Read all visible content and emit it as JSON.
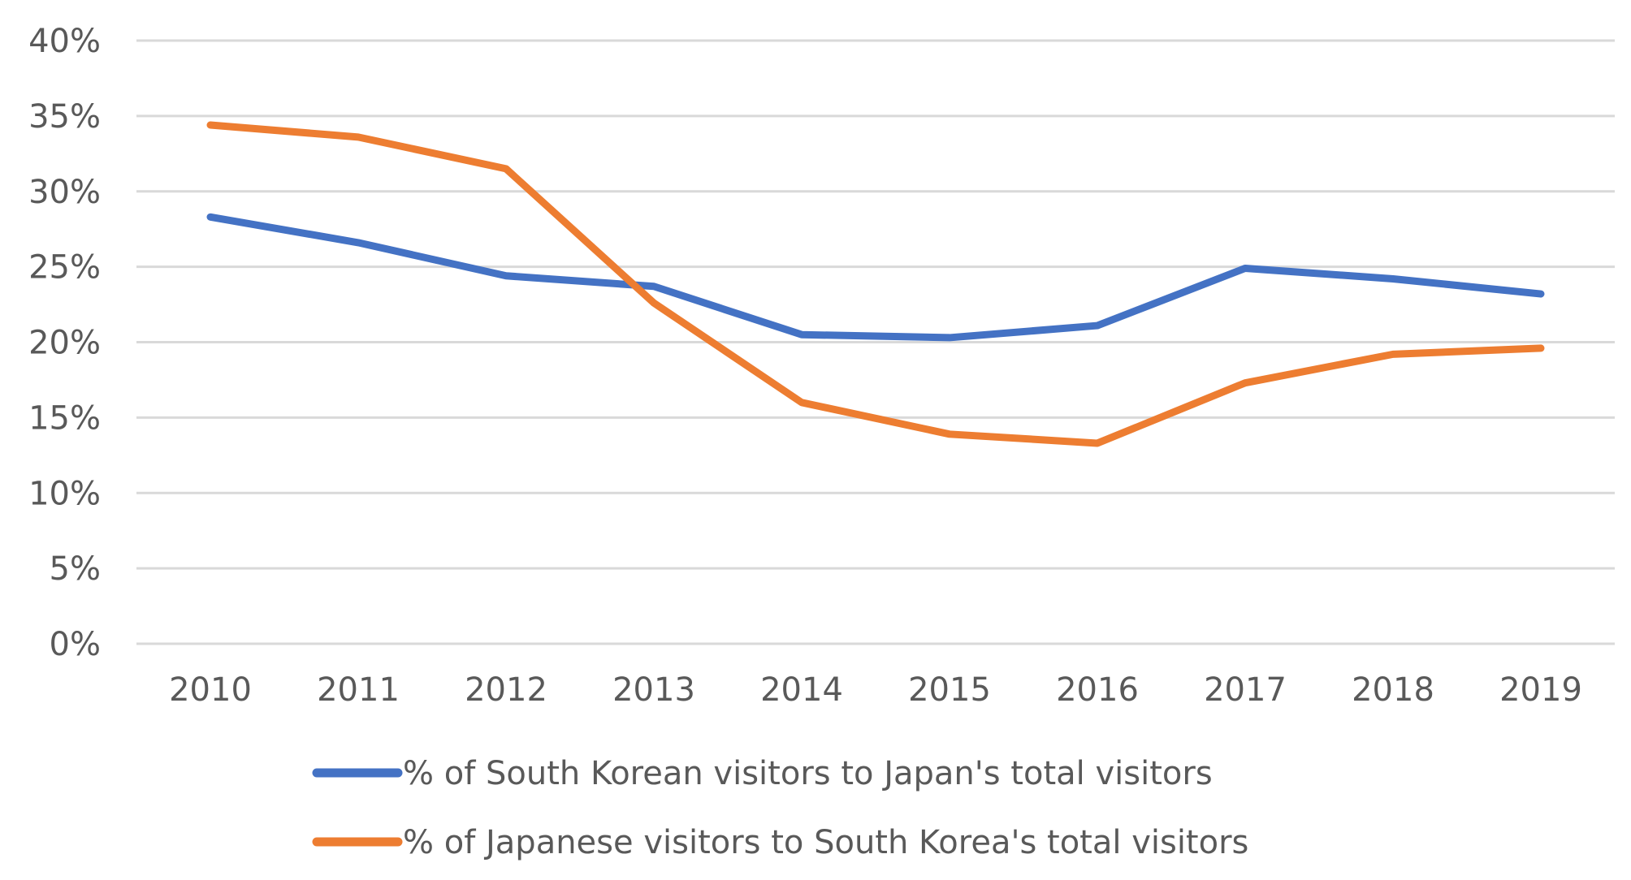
{
  "chart_data": {
    "type": "line",
    "title": "",
    "xlabel": "",
    "ylabel": "",
    "categories": [
      "2010",
      "2011",
      "2012",
      "2013",
      "2014",
      "2015",
      "2016",
      "2017",
      "2018",
      "2019"
    ],
    "ylim": [
      0,
      40
    ],
    "yticks": [
      0,
      5,
      10,
      15,
      20,
      25,
      30,
      35,
      40
    ],
    "ytick_labels": [
      "0%",
      "5%",
      "10%",
      "15%",
      "20%",
      "25%",
      "30%",
      "35%",
      "40%"
    ],
    "grid": "horizontal",
    "legend_position": "bottom",
    "series": [
      {
        "name": "% of South Korean visitors to Japan's total visitors",
        "color": "#4472c4",
        "values": [
          28.3,
          26.6,
          24.4,
          23.7,
          20.5,
          20.3,
          21.1,
          24.9,
          24.2,
          23.2
        ]
      },
      {
        "name": "% of Japanese visitors to South Korea's total visitors",
        "color": "#ed7d31",
        "values": [
          34.4,
          33.6,
          31.5,
          22.6,
          16.0,
          13.9,
          13.3,
          17.3,
          19.2,
          19.6
        ]
      }
    ]
  }
}
